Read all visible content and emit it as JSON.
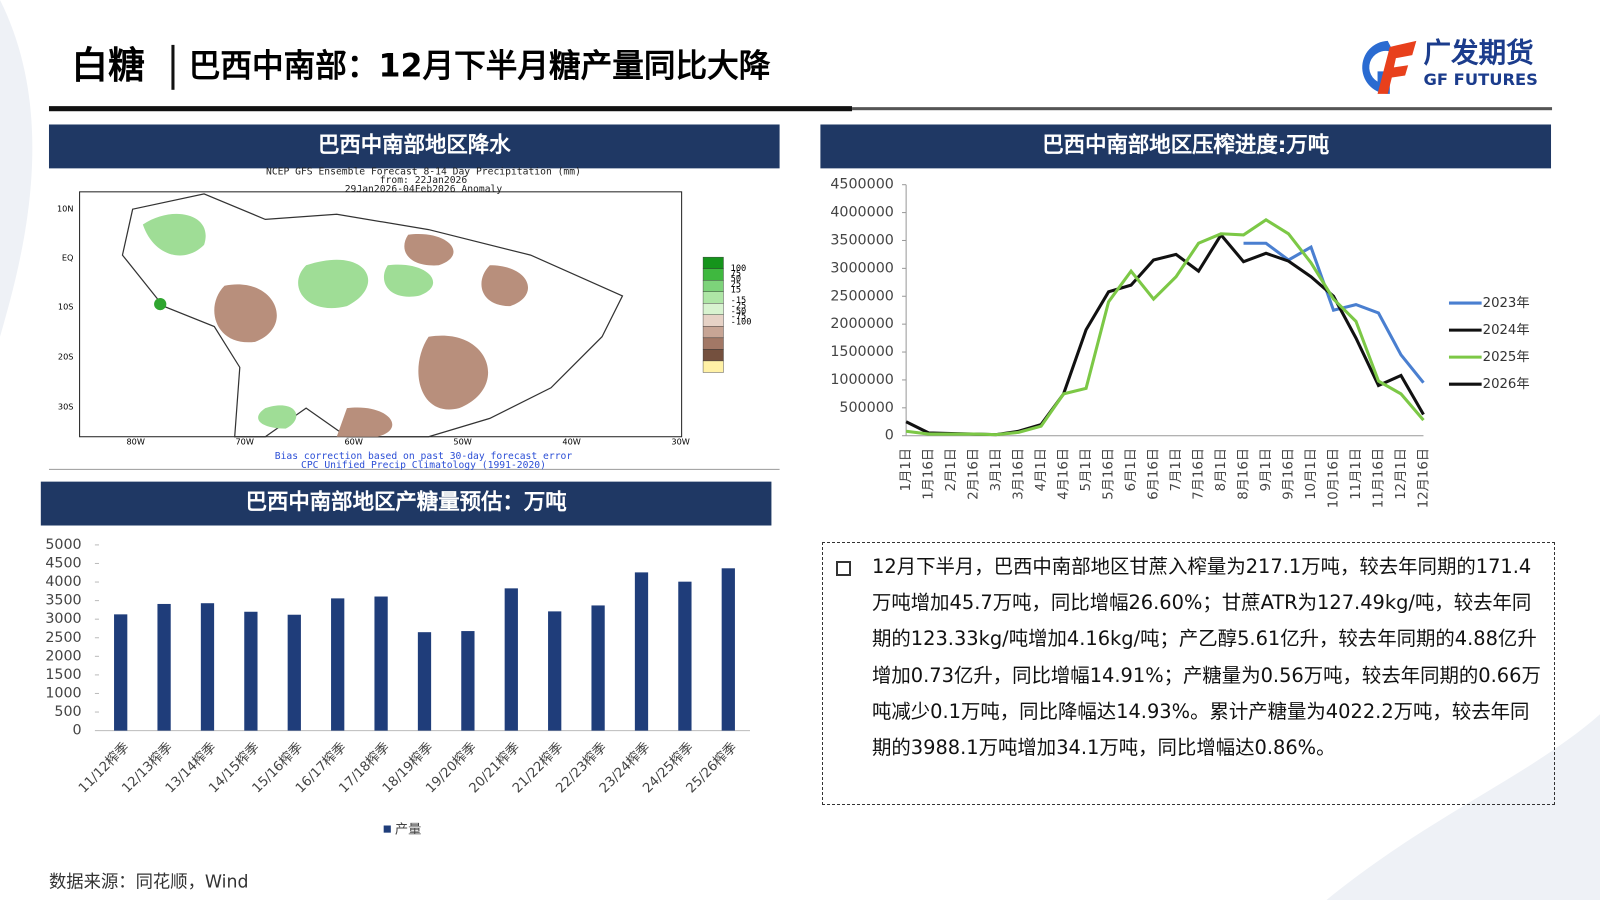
{
  "header": {
    "section": "白糖",
    "title": "巴西中南部：12月下半月糖产量同比大降",
    "logo_cn": "广发期货",
    "logo_en": "GF FUTURES"
  },
  "map_panel": {
    "title": "巴西中南部地区降水",
    "header_lines": [
      "NCEP GFS Ensemble Forecast 8-14 Day Precipitation (mm)",
      "from: 22Jan2026",
      "29Jan2026-04Feb2026 Anomaly"
    ],
    "lat_labels": [
      "10N",
      "EQ",
      "10S",
      "20S",
      "30S"
    ],
    "lon_labels": [
      "80W",
      "70W",
      "60W",
      "50W",
      "40W",
      "30W"
    ],
    "scale_labels": [
      "100",
      "75",
      "50",
      "25",
      "15",
      "-15",
      "-25",
      "-50",
      "-75",
      "-100"
    ],
    "scale_colors": [
      "#15941b",
      "#3fb83f",
      "#7dd37a",
      "#aee6a6",
      "#d8f3d0",
      "#e6d2c6",
      "#c7a595",
      "#a27866",
      "#74503e",
      "#fff1a6"
    ],
    "footer_lines": [
      "Bias correction based on past 30-day forecast error",
      "CPC Unified Precip Climatology (1991-2020)"
    ]
  },
  "chart_data": [
    {
      "type": "line",
      "title": "巴西中南部地区压榨进度:万吨",
      "categories": [
        "1月1日",
        "1月16日",
        "2月1日",
        "2月16日",
        "3月1日",
        "3月16日",
        "4月1日",
        "4月16日",
        "5月1日",
        "5月16日",
        "6月1日",
        "6月16日",
        "7月1日",
        "7月16日",
        "8月1日",
        "8月16日",
        "9月1日",
        "9月16日",
        "10月1日",
        "10月16日",
        "11月1日",
        "11月16日",
        "12月1日",
        "12月16日"
      ],
      "ylim": [
        0,
        4500000
      ],
      "yticks": [
        0,
        500000,
        1000000,
        1500000,
        2000000,
        2500000,
        3000000,
        3500000,
        4000000,
        4500000
      ],
      "legend": "right",
      "series": [
        {
          "name": "2023年",
          "color": "#4a7fd0",
          "values": [
            null,
            null,
            null,
            null,
            null,
            null,
            null,
            null,
            null,
            null,
            null,
            null,
            null,
            null,
            null,
            3450000,
            3450000,
            3150000,
            3380000,
            2250000,
            2350000,
            2200000,
            1450000,
            950000
          ]
        },
        {
          "name": "2024年",
          "color": "#111111",
          "values": [
            250000,
            50000,
            40000,
            30000,
            20000,
            80000,
            200000,
            750000,
            1900000,
            2580000,
            2700000,
            3150000,
            3250000,
            2950000,
            3600000,
            3120000,
            3270000,
            3130000,
            2850000,
            2500000,
            1750000,
            900000,
            1080000,
            380000
          ]
        },
        {
          "name": "2025年",
          "color": "#7cc846",
          "values": [
            80000,
            30000,
            30000,
            30000,
            20000,
            60000,
            170000,
            750000,
            850000,
            2400000,
            2950000,
            2450000,
            2850000,
            3450000,
            3620000,
            3600000,
            3870000,
            3620000,
            3100000,
            2450000,
            2050000,
            980000,
            750000,
            280000
          ]
        },
        {
          "name": "2026年",
          "color": "#111111",
          "values": [
            null,
            null,
            null,
            null,
            null,
            null,
            null,
            null,
            null,
            null,
            null,
            null,
            null,
            null,
            null,
            null,
            null,
            null,
            null,
            null,
            null,
            null,
            null,
            null
          ]
        }
      ]
    },
    {
      "type": "bar",
      "title": "巴西中南部地区产糖量预估：万吨",
      "categories": [
        "11/12榨季",
        "12/13榨季",
        "13/14榨季",
        "14/15榨季",
        "15/16榨季",
        "16/17榨季",
        "17/18榨季",
        "18/19榨季",
        "19/20榨季",
        "20/21榨季",
        "21/22榨季",
        "22/23榨季",
        "23/24榨季",
        "24/25榨季",
        "25/26榨季"
      ],
      "ylim": [
        0,
        5000
      ],
      "yticks": [
        0,
        500,
        1000,
        1500,
        2000,
        2500,
        3000,
        3500,
        4000,
        4500,
        5000
      ],
      "legend": "bottom",
      "series": [
        {
          "name": "产量",
          "color": "#1f3d7a",
          "values": [
            3130,
            3410,
            3430,
            3200,
            3120,
            3560,
            3610,
            2650,
            2680,
            3830,
            3210,
            3370,
            4260,
            4010,
            4370
          ]
        }
      ]
    }
  ],
  "commentary": {
    "text": "12月下半月，巴西中南部地区甘蔗入榨量为217.1万吨，较去年同期的171.4万吨增加45.7万吨，同比增幅26.60%；甘蔗ATR为127.49kg/吨，较去年同期的123.33kg/吨增加4.16kg/吨；产乙醇5.61亿升，较去年同期的4.88亿升增加0.73亿升，同比增幅14.91%；产糖量为0.56万吨，较去年同期的0.66万吨减少0.1万吨，同比降幅达14.93%。累计产糖量为4022.2万吨，较去年同期的3988.1万吨增加34.1万吨，同比增幅达0.86%。"
  },
  "source": "数据来源：同花顺，Wind"
}
